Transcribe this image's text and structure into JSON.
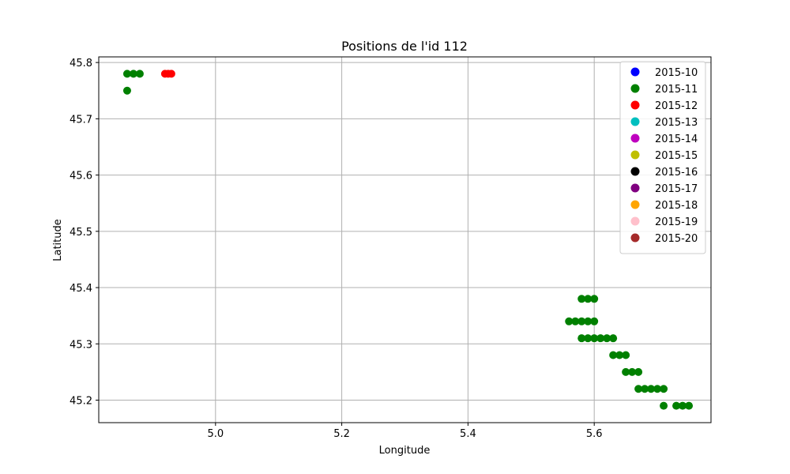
{
  "chart_data": {
    "type": "scatter",
    "title": "Positions de l'id 112",
    "xlabel": "Longitude",
    "ylabel": "Latitude",
    "xlim": [
      4.815,
      5.785
    ],
    "ylim": [
      45.16,
      45.81
    ],
    "xticks": [
      5.0,
      5.2,
      5.4,
      5.6
    ],
    "xtick_labels": [
      "5.0",
      "5.2",
      "5.4",
      "5.6"
    ],
    "yticks": [
      45.2,
      45.3,
      45.4,
      45.5,
      45.6,
      45.7,
      45.8
    ],
    "ytick_labels": [
      "45.2",
      "45.3",
      "45.4",
      "45.5",
      "45.6",
      "45.7",
      "45.8"
    ],
    "grid": true,
    "legend_position": "top-right",
    "series": [
      {
        "name": "2015-10",
        "color": "#0000ff",
        "points": []
      },
      {
        "name": "2015-11",
        "color": "#008000",
        "points": [
          [
            4.86,
            45.78
          ],
          [
            4.87,
            45.78
          ],
          [
            4.88,
            45.78
          ],
          [
            4.86,
            45.75
          ],
          [
            5.58,
            45.38
          ],
          [
            5.59,
            45.38
          ],
          [
            5.6,
            45.38
          ],
          [
            5.56,
            45.34
          ],
          [
            5.57,
            45.34
          ],
          [
            5.58,
            45.34
          ],
          [
            5.59,
            45.34
          ],
          [
            5.6,
            45.34
          ],
          [
            5.58,
            45.31
          ],
          [
            5.59,
            45.31
          ],
          [
            5.6,
            45.31
          ],
          [
            5.61,
            45.31
          ],
          [
            5.62,
            45.31
          ],
          [
            5.63,
            45.31
          ],
          [
            5.63,
            45.28
          ],
          [
            5.64,
            45.28
          ],
          [
            5.65,
            45.28
          ],
          [
            5.65,
            45.25
          ],
          [
            5.66,
            45.25
          ],
          [
            5.67,
            45.25
          ],
          [
            5.67,
            45.22
          ],
          [
            5.68,
            45.22
          ],
          [
            5.69,
            45.22
          ],
          [
            5.7,
            45.22
          ],
          [
            5.71,
            45.22
          ],
          [
            5.71,
            45.19
          ],
          [
            5.73,
            45.19
          ],
          [
            5.74,
            45.19
          ],
          [
            5.75,
            45.19
          ]
        ]
      },
      {
        "name": "2015-12",
        "color": "#ff0000",
        "points": [
          [
            4.92,
            45.78
          ],
          [
            4.925,
            45.78
          ],
          [
            4.93,
            45.78
          ]
        ]
      },
      {
        "name": "2015-13",
        "color": "#00bfbf",
        "points": []
      },
      {
        "name": "2015-14",
        "color": "#bf00bf",
        "points": []
      },
      {
        "name": "2015-15",
        "color": "#bfbf00",
        "points": []
      },
      {
        "name": "2015-16",
        "color": "#000000",
        "points": []
      },
      {
        "name": "2015-17",
        "color": "#800080",
        "points": []
      },
      {
        "name": "2015-18",
        "color": "#ffa500",
        "points": []
      },
      {
        "name": "2015-19",
        "color": "#ffc0cb",
        "points": []
      },
      {
        "name": "2015-20",
        "color": "#a52a2a",
        "points": []
      }
    ]
  }
}
